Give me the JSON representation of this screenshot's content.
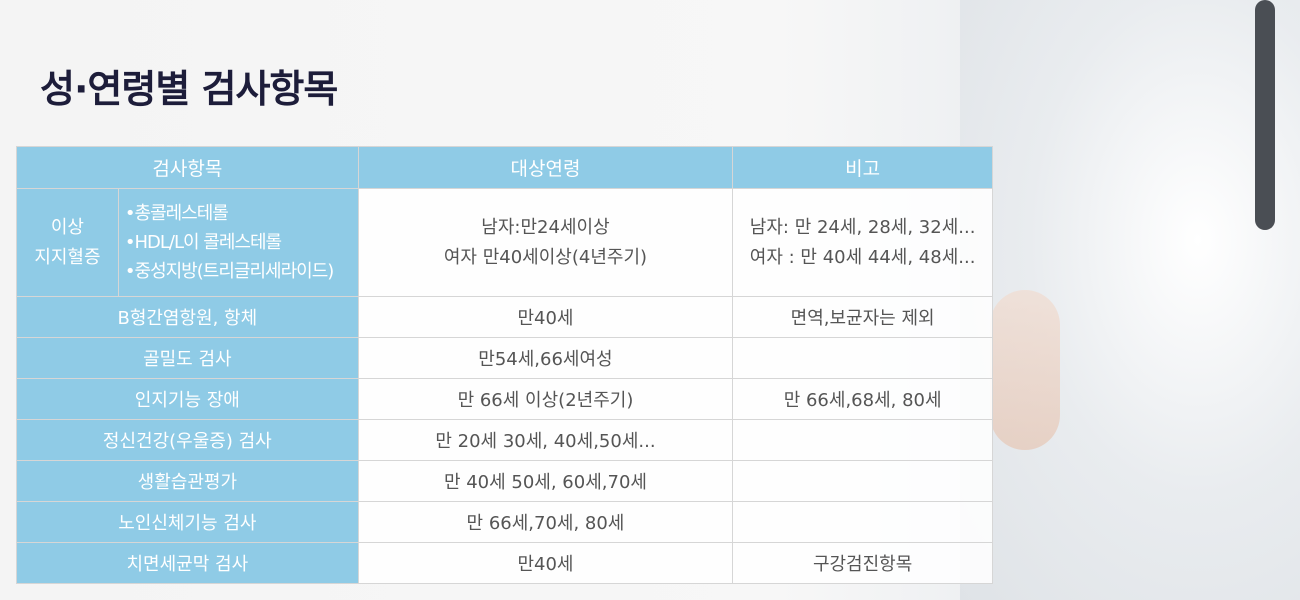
{
  "title": "성·연령별 검사항목",
  "table": {
    "headers": [
      "검사항목",
      "대상연령",
      "비고"
    ],
    "lipid": {
      "label_line1": "이상",
      "label_line2": "지지혈증",
      "items": [
        "•총콜레스테롤",
        "•HDL/L이 콜레스테롤",
        "•중성지방(트리글리세라이드)"
      ],
      "age_line1": "남자:만24세이상",
      "age_line2": "여자 만40세이상(4년주기)",
      "note_line1": "남자: 만 24세, 28세, 32세...",
      "note_line2": "여자 : 만 40세 44세, 48세..."
    },
    "rows": [
      {
        "item": "B형간염항원, 항체",
        "age": "만40세",
        "note": "면역,보균자는 제외"
      },
      {
        "item": "골밀도 검사",
        "age": "만54세,66세여성",
        "note": ""
      },
      {
        "item": "인지기능 장애",
        "age": "만 66세 이상(2년주기)",
        "note": "만 66세,68세, 80세"
      },
      {
        "item": "정신건강(우울증) 검사",
        "age": "만 20세 30세, 40세,50세...",
        "note": ""
      },
      {
        "item": "생활습관평가",
        "age": "만 40세 50세, 60세,70세",
        "note": ""
      },
      {
        "item": "노인신체기능 검사",
        "age": "만 66세,70세, 80세",
        "note": ""
      },
      {
        "item": "치면세균막 검사",
        "age": "만40세",
        "note": "구강검진항목"
      }
    ]
  },
  "colors": {
    "header_bg": "#8fcbe6",
    "title": "#1d1d3a"
  }
}
